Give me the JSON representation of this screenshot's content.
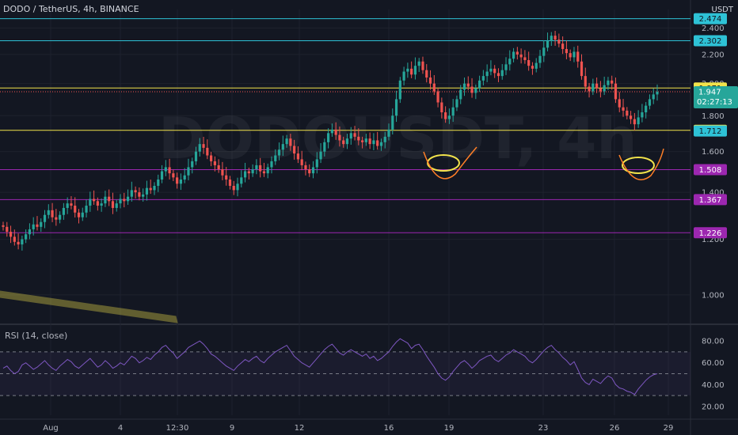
{
  "header": {
    "symbol": "DODO / TetherUS, 4h, BINANCE",
    "watermark": "DODOUSDT, 4h",
    "unit": "USDT"
  },
  "rsi": {
    "title": "RSI (14, close)"
  },
  "chart_data": {
    "type": "candlestick",
    "price_axis": {
      "ticks": [
        1.0,
        1.2,
        1.4,
        1.6,
        1.8,
        2.0,
        2.2,
        2.4
      ],
      "scale": "log",
      "range": [
        0.92,
        2.55
      ]
    },
    "rsi_axis": {
      "ticks": [
        20,
        40,
        60,
        80
      ],
      "range": [
        12,
        88
      ],
      "bands": [
        30,
        50,
        70
      ]
    },
    "x_ticks": [
      "Aug",
      "4",
      "12:30",
      "9",
      "12",
      "16",
      "19",
      "23",
      "26",
      "29"
    ],
    "current": {
      "price": 1.947,
      "countdown": "02:27:13"
    },
    "levels": [
      {
        "value": 2.474,
        "label": "2.474",
        "color": "#2ec2d6",
        "style": "solid"
      },
      {
        "value": 2.302,
        "label": "2.302",
        "color": "#2ec2d6",
        "style": "solid"
      },
      {
        "value": 1.971,
        "label": "1.971",
        "color": "#f2e34b",
        "style": "solid"
      },
      {
        "value": 1.716,
        "label": "1.716",
        "color": "#f2e34b",
        "style": "solid"
      },
      {
        "value": 1.712,
        "label": "1.712",
        "color": "#2ec2d6",
        "style": "label"
      },
      {
        "value": 1.508,
        "label": "1.508",
        "color": "#9c27b0",
        "style": "solid"
      },
      {
        "value": 1.367,
        "label": "1.367",
        "color": "#9c27b0",
        "style": "solid"
      },
      {
        "value": 1.226,
        "label": "1.226",
        "color": "#9c27b0",
        "style": "solid"
      }
    ],
    "colors": {
      "up": "#26a69a",
      "down": "#ef5350",
      "rsi": "#7e57c2",
      "background": "#131722"
    },
    "candles_approx": [
      1.25,
      1.23,
      1.21,
      1.19,
      1.18,
      1.2,
      1.22,
      1.24,
      1.26,
      1.25,
      1.27,
      1.3,
      1.32,
      1.29,
      1.28,
      1.3,
      1.33,
      1.35,
      1.34,
      1.31,
      1.29,
      1.31,
      1.34,
      1.37,
      1.36,
      1.34,
      1.35,
      1.38,
      1.36,
      1.33,
      1.35,
      1.37,
      1.36,
      1.38,
      1.41,
      1.4,
      1.38,
      1.39,
      1.42,
      1.41,
      1.43,
      1.46,
      1.5,
      1.52,
      1.49,
      1.47,
      1.44,
      1.46,
      1.48,
      1.52,
      1.55,
      1.6,
      1.64,
      1.62,
      1.58,
      1.55,
      1.53,
      1.51,
      1.48,
      1.46,
      1.43,
      1.41,
      1.44,
      1.47,
      1.5,
      1.49,
      1.51,
      1.53,
      1.5,
      1.49,
      1.52,
      1.55,
      1.58,
      1.61,
      1.64,
      1.67,
      1.63,
      1.59,
      1.56,
      1.53,
      1.51,
      1.49,
      1.52,
      1.56,
      1.6,
      1.65,
      1.7,
      1.72,
      1.69,
      1.66,
      1.64,
      1.67,
      1.7,
      1.68,
      1.66,
      1.65,
      1.67,
      1.64,
      1.66,
      1.63,
      1.65,
      1.68,
      1.72,
      1.8,
      1.9,
      2.02,
      2.08,
      2.1,
      2.06,
      2.12,
      2.15,
      2.09,
      2.04,
      2.0,
      1.95,
      1.88,
      1.82,
      1.78,
      1.8,
      1.85,
      1.9,
      1.96,
      2.0,
      1.98,
      1.94,
      1.97,
      2.02,
      2.05,
      2.08,
      2.1,
      2.07,
      2.05,
      2.09,
      2.13,
      2.17,
      2.22,
      2.2,
      2.18,
      2.16,
      2.12,
      2.1,
      2.14,
      2.19,
      2.25,
      2.3,
      2.34,
      2.31,
      2.28,
      2.24,
      2.21,
      2.18,
      2.22,
      2.15,
      2.05,
      1.98,
      1.95,
      2.0,
      1.97,
      1.95,
      1.99,
      2.02,
      2.0,
      1.9,
      1.85,
      1.83,
      1.8,
      1.78,
      1.75,
      1.79,
      1.82,
      1.86,
      1.9,
      1.93,
      1.947
    ],
    "rsi_approx": [
      55,
      57,
      53,
      50,
      52,
      58,
      60,
      57,
      54,
      56,
      59,
      62,
      58,
      55,
      53,
      57,
      60,
      63,
      61,
      57,
      55,
      58,
      61,
      64,
      60,
      56,
      58,
      62,
      59,
      55,
      57,
      60,
      58,
      62,
      66,
      64,
      60,
      62,
      65,
      63,
      67,
      70,
      74,
      76,
      72,
      69,
      64,
      67,
      70,
      74,
      76,
      78,
      80,
      77,
      73,
      68,
      66,
      63,
      60,
      57,
      55,
      53,
      57,
      60,
      63,
      61,
      64,
      66,
      62,
      60,
      64,
      67,
      70,
      72,
      74,
      76,
      71,
      66,
      63,
      60,
      58,
      56,
      60,
      64,
      68,
      72,
      75,
      77,
      73,
      69,
      67,
      70,
      72,
      70,
      68,
      66,
      68,
      64,
      66,
      62,
      64,
      67,
      70,
      75,
      79,
      82,
      80,
      78,
      73,
      76,
      77,
      72,
      66,
      61,
      56,
      50,
      46,
      44,
      47,
      52,
      56,
      60,
      62,
      59,
      55,
      58,
      62,
      64,
      66,
      67,
      63,
      61,
      64,
      67,
      69,
      72,
      70,
      68,
      66,
      62,
      60,
      63,
      67,
      71,
      74,
      76,
      72,
      69,
      65,
      62,
      58,
      61,
      54,
      46,
      42,
      40,
      45,
      43,
      41,
      45,
      48,
      46,
      40,
      37,
      36,
      34,
      33,
      31,
      36,
      40,
      44,
      47,
      49,
      50
    ]
  }
}
